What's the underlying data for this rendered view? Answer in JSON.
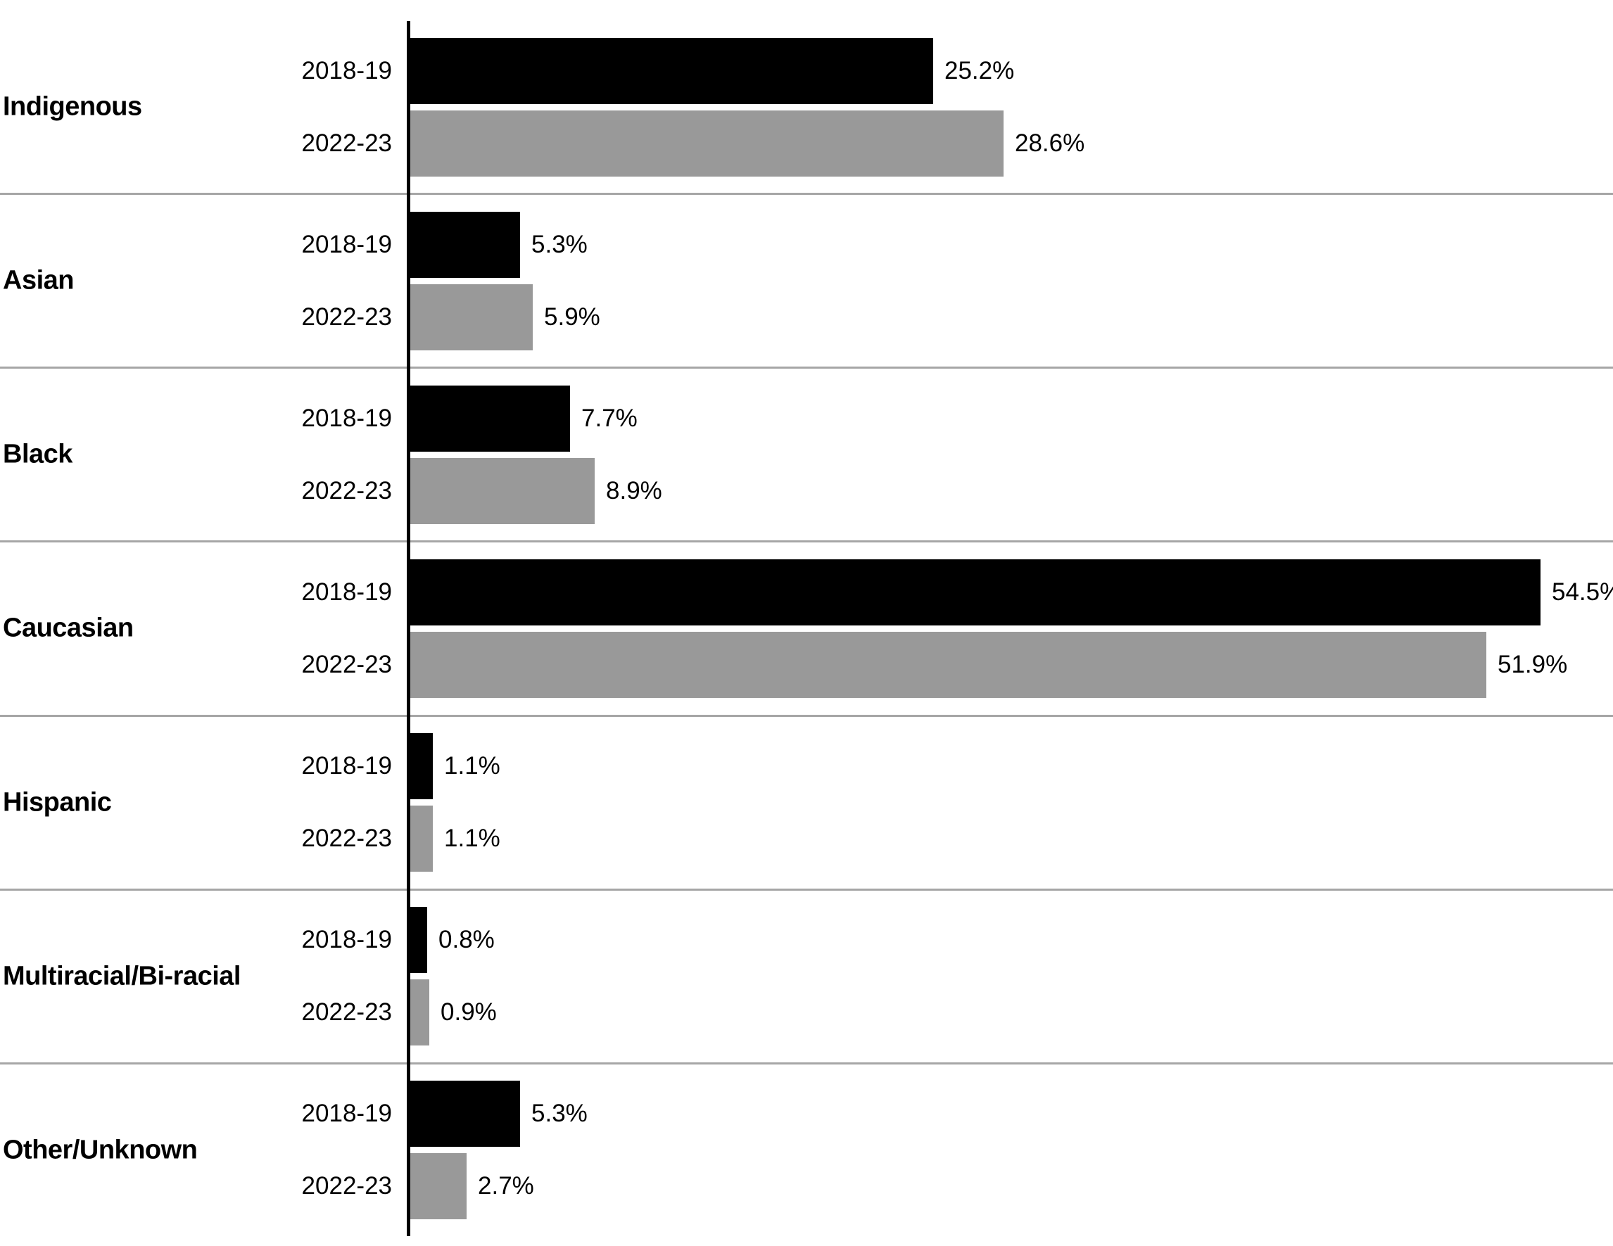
{
  "chart_data": {
    "type": "bar",
    "orientation": "horizontal",
    "title": "",
    "xlabel": "",
    "ylabel": "",
    "categories": [
      "Indigenous",
      "Asian",
      "Black",
      "Caucasian",
      "Hispanic",
      "Multiracial/Bi-racial",
      "Other/Unknown"
    ],
    "series": [
      {
        "name": "2018-19",
        "color": "#000000",
        "values": [
          25.2,
          5.3,
          7.7,
          54.5,
          1.1,
          0.8,
          5.3
        ]
      },
      {
        "name": "2022-23",
        "color": "#999999",
        "values": [
          28.6,
          5.9,
          8.9,
          51.9,
          1.1,
          0.9,
          2.7
        ]
      }
    ],
    "value_suffix": "%",
    "xlim": [
      0,
      58
    ],
    "grid": "horizontal-category-separators",
    "legend_position": "none (year labels inline beside each bar)"
  },
  "styles": {
    "background": "#ffffff",
    "axis_color": "#000000",
    "separator_color": "#a6a6a6",
    "label_color": "#000000"
  }
}
